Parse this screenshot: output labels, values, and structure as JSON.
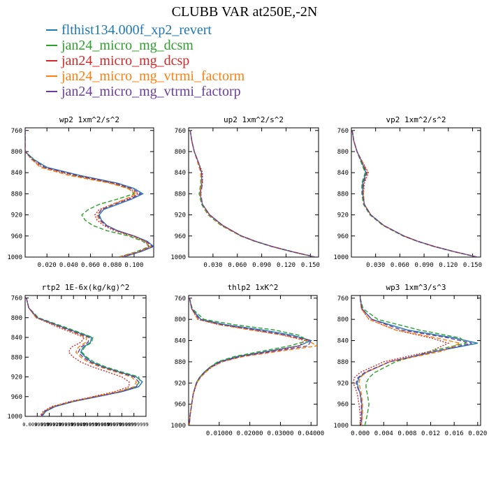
{
  "title": "CLUBB VAR at250E,-2N",
  "series": [
    {
      "name": "flthist134.000f_xp2_revert",
      "color": "#1f77b4",
      "dash": "solid"
    },
    {
      "name": "jan24_micro_mg_dcsm",
      "color": "#2ca02c",
      "dash": "dashed"
    },
    {
      "name": "jan24_micro_mg_dcsp",
      "color": "#d62728",
      "dash": "dotted"
    },
    {
      "name": "jan24_micro_mg_vtrmi_factorm",
      "color": "#ff7f0e",
      "dash": "dashed"
    },
    {
      "name": "jan24_micro_mg_vtrmi_factorp",
      "color": "#6a3d9a",
      "dash": "dashed"
    }
  ],
  "chart_data": [
    {
      "type": "line",
      "title": "wp2  1xm^2/s^2",
      "xlim": [
        0.0,
        0.118
      ],
      "ylim": [
        1000,
        755
      ],
      "xticks": [
        "0.020",
        "0.040",
        "0.060",
        "0.080",
        "0.100"
      ],
      "xtick_values": [
        0.02,
        0.04,
        0.06,
        0.08,
        0.1
      ],
      "yticks": [
        760,
        800,
        840,
        880,
        920,
        960,
        1000
      ],
      "y": [
        760,
        780,
        800,
        815,
        830,
        845,
        860,
        870,
        880,
        890,
        900,
        910,
        920,
        930,
        940,
        950,
        960,
        970,
        980,
        990,
        1000
      ],
      "series": [
        {
          "name": "flthist134.000f_xp2_revert",
          "x": [
            0.0,
            0.0,
            0.0,
            0.008,
            0.02,
            0.05,
            0.085,
            0.1,
            0.108,
            0.098,
            0.085,
            0.072,
            0.068,
            0.07,
            0.075,
            0.085,
            0.1,
            0.112,
            0.118,
            0.106,
            0.09
          ]
        },
        {
          "name": "jan24_micro_mg_dcsm",
          "x": [
            0.0,
            0.0,
            0.0,
            0.008,
            0.018,
            0.045,
            0.08,
            0.095,
            0.1,
            0.085,
            0.068,
            0.058,
            0.052,
            0.055,
            0.062,
            0.075,
            0.095,
            0.108,
            0.114,
            0.102,
            0.086
          ]
        },
        {
          "name": "jan24_micro_mg_dcsp",
          "x": [
            0.0,
            0.0,
            0.0,
            0.006,
            0.016,
            0.044,
            0.08,
            0.096,
            0.104,
            0.094,
            0.08,
            0.068,
            0.064,
            0.066,
            0.072,
            0.082,
            0.098,
            0.11,
            0.114,
            0.104,
            0.086
          ]
        },
        {
          "name": "jan24_micro_mg_vtrmi_factorm",
          "x": [
            0.0,
            0.0,
            0.0,
            0.006,
            0.014,
            0.04,
            0.078,
            0.094,
            0.102,
            0.092,
            0.08,
            0.07,
            0.066,
            0.068,
            0.074,
            0.084,
            0.098,
            0.11,
            0.116,
            0.104,
            0.088
          ]
        },
        {
          "name": "jan24_micro_mg_vtrmi_factorp",
          "x": [
            0.0,
            0.0,
            0.0,
            0.007,
            0.018,
            0.048,
            0.083,
            0.098,
            0.106,
            0.096,
            0.082,
            0.07,
            0.067,
            0.069,
            0.074,
            0.084,
            0.1,
            0.111,
            0.117,
            0.105,
            0.089
          ]
        }
      ]
    },
    {
      "type": "line",
      "title": "up2  1xm^2/s^2",
      "xlim": [
        0.0,
        0.16
      ],
      "ylim": [
        1000,
        755
      ],
      "xticks": [
        "0.030",
        "0.060",
        "0.090",
        "0.120",
        "0.150"
      ],
      "xtick_values": [
        0.03,
        0.06,
        0.09,
        0.12,
        0.15
      ],
      "yticks": [
        760,
        800,
        840,
        880,
        920,
        960,
        1000
      ],
      "y": [
        760,
        780,
        800,
        820,
        840,
        860,
        880,
        900,
        920,
        940,
        960,
        970,
        980,
        990,
        1000
      ],
      "series": [
        {
          "name": "flthist134.000f_xp2_revert",
          "x": [
            0.002,
            0.004,
            0.007,
            0.012,
            0.016,
            0.016,
            0.014,
            0.017,
            0.026,
            0.042,
            0.065,
            0.082,
            0.103,
            0.128,
            0.156
          ]
        },
        {
          "name": "jan24_micro_mg_dcsm",
          "x": [
            0.002,
            0.004,
            0.007,
            0.012,
            0.015,
            0.015,
            0.013,
            0.016,
            0.024,
            0.04,
            0.064,
            0.081,
            0.102,
            0.127,
            0.156
          ]
        },
        {
          "name": "jan24_micro_mg_dcsp",
          "x": [
            0.002,
            0.004,
            0.007,
            0.012,
            0.017,
            0.017,
            0.014,
            0.017,
            0.026,
            0.042,
            0.065,
            0.082,
            0.103,
            0.128,
            0.156
          ]
        },
        {
          "name": "jan24_micro_mg_vtrmi_factorm",
          "x": [
            0.002,
            0.004,
            0.007,
            0.011,
            0.015,
            0.016,
            0.014,
            0.017,
            0.025,
            0.041,
            0.064,
            0.082,
            0.103,
            0.128,
            0.156
          ]
        },
        {
          "name": "jan24_micro_mg_vtrmi_factorp",
          "x": [
            0.002,
            0.004,
            0.007,
            0.012,
            0.016,
            0.017,
            0.015,
            0.017,
            0.026,
            0.042,
            0.065,
            0.082,
            0.103,
            0.128,
            0.156
          ]
        }
      ]
    },
    {
      "type": "line",
      "title": "vp2  1xm^2/s^2",
      "xlim": [
        0.0,
        0.16
      ],
      "ylim": [
        1000,
        755
      ],
      "xticks": [
        "0.030",
        "0.060",
        "0.090",
        "0.120",
        "0.150"
      ],
      "xtick_values": [
        0.03,
        0.06,
        0.09,
        0.12,
        0.15
      ],
      "yticks": [
        760,
        800,
        840,
        880,
        920,
        960,
        1000
      ],
      "y": [
        760,
        780,
        800,
        820,
        840,
        860,
        880,
        900,
        920,
        940,
        960,
        970,
        980,
        990,
        1000
      ],
      "series": [
        {
          "name": "flthist134.000f_xp2_revert",
          "x": [
            0.001,
            0.003,
            0.007,
            0.013,
            0.018,
            0.014,
            0.014,
            0.016,
            0.024,
            0.04,
            0.065,
            0.082,
            0.103,
            0.128,
            0.156
          ]
        },
        {
          "name": "jan24_micro_mg_dcsm",
          "x": [
            0.001,
            0.003,
            0.007,
            0.012,
            0.017,
            0.013,
            0.013,
            0.015,
            0.023,
            0.039,
            0.064,
            0.081,
            0.102,
            0.127,
            0.156
          ]
        },
        {
          "name": "jan24_micro_mg_dcsp",
          "x": [
            0.001,
            0.003,
            0.007,
            0.014,
            0.021,
            0.016,
            0.015,
            0.016,
            0.024,
            0.04,
            0.065,
            0.082,
            0.103,
            0.128,
            0.156
          ]
        },
        {
          "name": "jan24_micro_mg_vtrmi_factorm",
          "x": [
            0.001,
            0.003,
            0.007,
            0.014,
            0.02,
            0.015,
            0.015,
            0.016,
            0.024,
            0.04,
            0.065,
            0.082,
            0.103,
            0.128,
            0.156
          ]
        },
        {
          "name": "jan24_micro_mg_vtrmi_factorp",
          "x": [
            0.001,
            0.003,
            0.007,
            0.013,
            0.019,
            0.015,
            0.014,
            0.016,
            0.024,
            0.04,
            0.065,
            0.082,
            0.103,
            0.128,
            0.156
          ]
        }
      ]
    },
    {
      "type": "line",
      "title": "rtp2  1E-6x(kg/kg)^2",
      "xlim": [
        0.0,
        0.1
      ],
      "ylim": [
        1000,
        755
      ],
      "xticks": [
        "0.00999999",
        "0.01999999",
        "0.02999999",
        "0.03999999",
        "0.04999999",
        "0.05999999",
        "0.06999999",
        "0.07999999",
        "0.08999999"
      ],
      "xtick_values": [
        0.01,
        0.02,
        0.03,
        0.04,
        0.05,
        0.06,
        0.07,
        0.08,
        0.09
      ],
      "yticks": [
        760,
        800,
        840,
        880,
        920,
        960,
        1000
      ],
      "y": [
        760,
        780,
        800,
        820,
        840,
        850,
        860,
        870,
        880,
        890,
        900,
        910,
        920,
        930,
        940,
        950,
        960,
        970,
        980,
        990,
        1000
      ],
      "series": [
        {
          "name": "flthist134.000f_xp2_revert",
          "x": [
            0.001,
            0.003,
            0.01,
            0.032,
            0.055,
            0.054,
            0.048,
            0.046,
            0.05,
            0.055,
            0.065,
            0.078,
            0.092,
            0.097,
            0.094,
            0.08,
            0.06,
            0.04,
            0.025,
            0.017,
            0.014
          ]
        },
        {
          "name": "jan24_micro_mg_dcsm",
          "x": [
            0.001,
            0.003,
            0.011,
            0.034,
            0.056,
            0.055,
            0.049,
            0.047,
            0.051,
            0.057,
            0.067,
            0.08,
            0.094,
            0.095,
            0.091,
            0.078,
            0.058,
            0.039,
            0.024,
            0.016,
            0.013
          ]
        },
        {
          "name": "jan24_micro_mg_dcsp",
          "x": [
            0.001,
            0.003,
            0.009,
            0.028,
            0.049,
            0.046,
            0.038,
            0.036,
            0.04,
            0.046,
            0.056,
            0.068,
            0.08,
            0.086,
            0.086,
            0.074,
            0.056,
            0.037,
            0.022,
            0.015,
            0.012
          ]
        },
        {
          "name": "jan24_micro_mg_vtrmi_factorm",
          "x": [
            0.001,
            0.003,
            0.009,
            0.03,
            0.051,
            0.05,
            0.044,
            0.042,
            0.046,
            0.052,
            0.062,
            0.075,
            0.088,
            0.092,
            0.09,
            0.077,
            0.057,
            0.038,
            0.023,
            0.016,
            0.013
          ]
        },
        {
          "name": "jan24_micro_mg_vtrmi_factorp",
          "x": [
            0.001,
            0.003,
            0.01,
            0.031,
            0.053,
            0.052,
            0.046,
            0.044,
            0.048,
            0.054,
            0.064,
            0.077,
            0.09,
            0.094,
            0.092,
            0.079,
            0.059,
            0.039,
            0.024,
            0.016,
            0.013
          ]
        }
      ]
    },
    {
      "type": "line",
      "title": "thlp2  1xK^2",
      "xlim": [
        0.0,
        0.042
      ],
      "ylim": [
        1000,
        755
      ],
      "xticks": [
        "0.01000",
        "0.02000",
        "0.03000",
        "0.04000"
      ],
      "xtick_values": [
        0.01,
        0.02,
        0.03,
        0.04
      ],
      "yticks": [
        760,
        800,
        840,
        880,
        920,
        960,
        1000
      ],
      "y": [
        760,
        780,
        800,
        810,
        820,
        830,
        840,
        850,
        860,
        870,
        880,
        890,
        900,
        910,
        920,
        940,
        960,
        980,
        1000
      ],
      "series": [
        {
          "name": "flthist134.000f_xp2_revert",
          "x": [
            0.0003,
            0.001,
            0.004,
            0.012,
            0.024,
            0.034,
            0.04,
            0.036,
            0.026,
            0.016,
            0.01,
            0.007,
            0.005,
            0.0035,
            0.0025,
            0.0015,
            0.001,
            0.0005,
            0.0002
          ]
        },
        {
          "name": "jan24_micro_mg_dcsm",
          "x": [
            0.0003,
            0.0012,
            0.005,
            0.015,
            0.028,
            0.036,
            0.039,
            0.033,
            0.024,
            0.015,
            0.0095,
            0.007,
            0.005,
            0.0035,
            0.0025,
            0.0015,
            0.001,
            0.0005,
            0.0002
          ]
        },
        {
          "name": "jan24_micro_mg_dcsp",
          "x": [
            0.0003,
            0.001,
            0.003,
            0.01,
            0.021,
            0.031,
            0.038,
            0.036,
            0.027,
            0.017,
            0.011,
            0.0075,
            0.0055,
            0.0038,
            0.0027,
            0.0016,
            0.001,
            0.0005,
            0.0002
          ]
        },
        {
          "name": "jan24_micro_mg_vtrmi_factorm",
          "x": [
            0.0003,
            0.001,
            0.003,
            0.01,
            0.02,
            0.031,
            0.039,
            0.042,
            0.03,
            0.018,
            0.011,
            0.0075,
            0.0055,
            0.0038,
            0.0027,
            0.0016,
            0.001,
            0.0005,
            0.0002
          ]
        },
        {
          "name": "jan24_micro_mg_vtrmi_factorp",
          "x": [
            0.0003,
            0.001,
            0.0035,
            0.011,
            0.022,
            0.032,
            0.04,
            0.039,
            0.028,
            0.017,
            0.0105,
            0.0072,
            0.0052,
            0.0036,
            0.0026,
            0.0015,
            0.001,
            0.0005,
            0.0002
          ]
        }
      ]
    },
    {
      "type": "line",
      "title": "wp3  1xm^3/s^3",
      "xlim": [
        -0.0015,
        0.0205
      ],
      "ylim": [
        1000,
        755
      ],
      "xticks": [
        "0.000",
        "0.004",
        "0.008",
        "0.012",
        "0.016",
        "0.020"
      ],
      "xtick_values": [
        0.0,
        0.004,
        0.008,
        0.012,
        0.016,
        0.02
      ],
      "yticks": [
        760,
        800,
        840,
        880,
        920,
        960,
        1000
      ],
      "y": [
        760,
        780,
        800,
        820,
        835,
        845,
        860,
        880,
        900,
        910,
        920,
        930,
        940,
        960,
        980,
        1000
      ],
      "series": [
        {
          "name": "flthist134.000f_xp2_revert",
          "x": [
            0.0,
            0.0003,
            0.002,
            0.008,
            0.016,
            0.02,
            0.013,
            0.005,
            0.001,
            -0.0002,
            -0.0005,
            -0.0003,
            0.0,
            0.0003,
            0.0003,
            0.0002
          ]
        },
        {
          "name": "jan24_micro_mg_dcsm",
          "x": [
            0.0,
            0.0005,
            0.003,
            0.01,
            0.017,
            0.018,
            0.012,
            0.006,
            0.0025,
            0.0015,
            0.001,
            0.001,
            0.0012,
            0.0015,
            0.0012,
            0.0008
          ]
        },
        {
          "name": "jan24_micro_mg_dcsp",
          "x": [
            0.0,
            0.0002,
            0.0015,
            0.006,
            0.012,
            0.015,
            0.012,
            0.004,
            0.0,
            -0.001,
            -0.0012,
            -0.0008,
            -0.0005,
            -0.0002,
            0.0,
            0.0
          ]
        },
        {
          "name": "jan24_micro_mg_vtrmi_factorm",
          "x": [
            0.0,
            0.0002,
            0.0015,
            0.006,
            0.013,
            0.017,
            0.014,
            0.005,
            0.001,
            0.0,
            -0.0002,
            0.0,
            0.0002,
            0.0004,
            0.0004,
            0.0002
          ]
        },
        {
          "name": "jan24_micro_mg_vtrmi_factorp",
          "x": [
            0.0,
            0.0003,
            0.002,
            0.007,
            0.015,
            0.019,
            0.013,
            0.005,
            0.0008,
            -0.0004,
            -0.0007,
            -0.0004,
            0.0,
            0.0002,
            0.0002,
            0.0001
          ]
        }
      ]
    }
  ]
}
